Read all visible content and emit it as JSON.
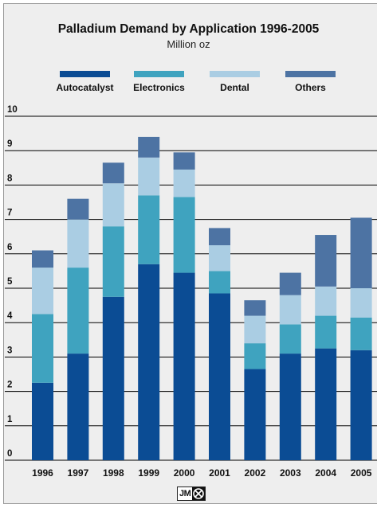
{
  "chart_data": {
    "type": "bar",
    "stacked": true,
    "title": "Palladium Demand by Application 1996-2005",
    "subtitle": "Million oz",
    "xlabel": "",
    "ylabel": "",
    "ylim": [
      0,
      10
    ],
    "yticks": [
      "0",
      "1",
      "2",
      "3",
      "4",
      "5",
      "6",
      "7",
      "8",
      "9",
      "10"
    ],
    "grid": true,
    "legend_position": "top",
    "categories": [
      "1996",
      "1997",
      "1998",
      "1999",
      "2000",
      "2001",
      "2002",
      "2003",
      "2004",
      "2005"
    ],
    "series": [
      {
        "name": "Autocatalyst",
        "color": "#0b4c94",
        "values": [
          2.25,
          3.1,
          4.75,
          5.7,
          5.45,
          4.85,
          2.65,
          3.1,
          3.25,
          3.2
        ]
      },
      {
        "name": "Electronics",
        "color": "#3fa3bf",
        "values": [
          2.0,
          2.5,
          2.05,
          2.0,
          2.2,
          0.65,
          0.75,
          0.85,
          0.95,
          0.95
        ]
      },
      {
        "name": "Dental",
        "color": "#aacde3",
        "values": [
          1.35,
          1.4,
          1.25,
          1.1,
          0.8,
          0.75,
          0.8,
          0.85,
          0.85,
          0.85
        ]
      },
      {
        "name": "Others",
        "color": "#4d73a3",
        "values": [
          0.5,
          0.6,
          0.6,
          0.6,
          0.5,
          0.5,
          0.45,
          0.65,
          1.5,
          2.05
        ]
      }
    ]
  },
  "logo": {
    "text": "JM",
    "mark_icon": "hammer-crossed-icon"
  }
}
